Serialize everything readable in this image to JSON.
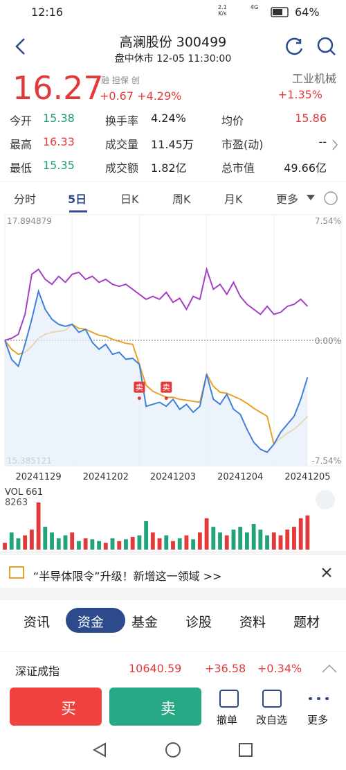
{
  "status": {
    "time": "12:16",
    "speed": "2.1",
    "speed_unit": "K/s",
    "network": "4G",
    "battery": "64%"
  },
  "header": {
    "title": "高澜股份 300499",
    "subtitle": "盘中休市 12-05 11:30:00"
  },
  "quote": {
    "price": "16.27",
    "change": "+0.67",
    "change_pct": "+4.29%",
    "badges": [
      "融",
      "担保",
      "创"
    ],
    "sector": "工业机械",
    "sector_change": "+1.35%"
  },
  "stats": [
    [
      [
        "今开",
        "15.38"
      ],
      [
        "换手率",
        "4.24%"
      ],
      [
        "均价",
        "15.86"
      ]
    ],
    [
      [
        "最高",
        "16.33"
      ],
      [
        "成交量",
        "11.45万"
      ],
      [
        "市盈(动)",
        "--"
      ]
    ],
    [
      [
        "最低",
        "15.35"
      ],
      [
        "成交额",
        "1.82亿"
      ],
      [
        "总市值",
        "49.66亿"
      ]
    ]
  ],
  "tabs": {
    "items": [
      "分时",
      "5日",
      "日K",
      "周K",
      "月K",
      "更多"
    ],
    "active": 1
  },
  "chart_data": [
    {
      "type": "line",
      "xlim": [
        0,
        50
      ],
      "x": [
        0,
        1,
        2,
        3,
        4,
        5,
        6,
        7,
        8,
        9,
        10,
        11,
        12,
        13,
        14,
        15,
        16,
        17,
        18,
        19,
        20,
        21,
        22,
        23,
        24,
        25,
        26,
        27,
        28,
        29,
        30,
        31,
        32,
        33,
        34,
        35,
        36,
        37,
        38,
        39,
        40,
        41,
        42,
        43,
        44,
        45
      ],
      "xticks": [
        {
          "value": 5,
          "label": "20241129"
        },
        {
          "value": 15,
          "label": "20241202"
        },
        {
          "value": 25,
          "label": "20241203"
        },
        {
          "value": 35,
          "label": "20241204"
        },
        {
          "value": 45,
          "label": "20241205"
        }
      ],
      "xgrid": [
        10,
        20,
        30,
        40
      ],
      "ylim": [
        15.385121,
        17.894879
      ],
      "yticks": [
        17.894879,
        15.385121
      ],
      "y2lim": [
        -7.54,
        7.54
      ],
      "y2ticks": [
        {
          "value": 7.54,
          "label": "7.54%"
        },
        {
          "value": 0,
          "label": "0.00%"
        },
        {
          "value": -7.54,
          "label": "-7.54%"
        }
      ],
      "series": [
        {
          "color": "#a43fc6",
          "values": [
            16.64,
            16.66,
            16.7,
            16.9,
            17.3,
            17.35,
            17.25,
            17.2,
            17.28,
            17.22,
            17.3,
            17.32,
            17.25,
            17.28,
            17.22,
            17.25,
            17.2,
            17.18,
            17.2,
            17.15,
            17.1,
            17.05,
            17.08,
            17.05,
            17.12,
            17.02,
            17.06,
            16.95,
            17.08,
            17.05,
            17.35,
            17.15,
            17.2,
            17.1,
            17.22,
            17.08,
            17.0,
            16.95,
            16.9,
            16.98,
            16.9,
            16.92,
            16.98,
            17.0,
            17.05,
            16.98
          ]
        },
        {
          "color": "#e8a128",
          "values": [
            16.64,
            16.55,
            16.5,
            16.52,
            16.58,
            16.66,
            16.7,
            16.72,
            16.73,
            16.74,
            16.8,
            16.76,
            16.75,
            16.72,
            16.69,
            16.68,
            16.65,
            16.63,
            16.61,
            16.6,
            16.4,
            16.19,
            16.13,
            16.1,
            16.07,
            16.07,
            16.05,
            16.04,
            16.03,
            16.02,
            16.3,
            16.18,
            16.12,
            16.11,
            16.08,
            16.05,
            16.01,
            15.96,
            15.92,
            15.88,
            15.6,
            15.66,
            15.71,
            15.75,
            15.81,
            15.88
          ]
        },
        {
          "color": "#3f7fdc",
          "values": [
            16.64,
            16.45,
            16.38,
            16.6,
            16.85,
            17.13,
            16.95,
            16.85,
            16.8,
            16.78,
            16.8,
            16.72,
            16.75,
            16.62,
            16.55,
            16.6,
            16.5,
            16.52,
            16.45,
            16.46,
            16.4,
            15.98,
            16.0,
            16.02,
            15.98,
            16.05,
            15.95,
            16.0,
            15.92,
            15.98,
            16.3,
            16.05,
            16.0,
            16.1,
            15.95,
            15.9,
            15.75,
            15.62,
            15.55,
            15.52,
            15.6,
            15.72,
            15.8,
            15.88,
            16.05,
            16.27
          ]
        }
      ],
      "annotations": [
        {
          "text": "卖",
          "x": 20,
          "y": 16.06
        },
        {
          "text": "卖",
          "x": 24,
          "y": 16.06
        }
      ]
    },
    {
      "type": "bar",
      "title": "VOL 661",
      "xlim": [
        0,
        50
      ],
      "ylim": [
        0,
        8263
      ],
      "yticks": [
        8263
      ],
      "up_color": "#e03a3a",
      "down_color": "#22a37a",
      "x": [
        0,
        1,
        2,
        3,
        4,
        5,
        6,
        7,
        8,
        9,
        10,
        11,
        12,
        13,
        14,
        15,
        16,
        17,
        18,
        19,
        20,
        21,
        22,
        23,
        24,
        25,
        26,
        27,
        28,
        29,
        30,
        31,
        32,
        33,
        34,
        35,
        36,
        37,
        38,
        39,
        40,
        41,
        42,
        43,
        44,
        45
      ],
      "values": [
        1200,
        3000,
        2000,
        2500,
        3500,
        8263,
        4000,
        3000,
        2000,
        2500,
        3000,
        1500,
        2000,
        1800,
        1500,
        1200,
        2000,
        1500,
        1800,
        2200,
        2500,
        5000,
        3000,
        2000,
        2500,
        1500,
        2000,
        2500,
        1800,
        3000,
        5500,
        4000,
        3000,
        2500,
        3500,
        4000,
        3000,
        4500,
        3500,
        2500,
        3000,
        2500,
        3500,
        4000,
        5500,
        6000
      ]
    }
  ],
  "banner": "“半导体限令”升级！新增这一领域 >>",
  "bottom_tabs": {
    "items": [
      "资讯",
      "资金",
      "基金",
      "诊股",
      "资料",
      "题材"
    ],
    "active": 1
  },
  "index_bar": {
    "name": "深证成指",
    "value": "10640.59",
    "change": "+36.58",
    "pct": "+0.34%"
  },
  "buttons": {
    "buy": "买",
    "sell": "卖",
    "actions": [
      "撤单",
      "改自选",
      "更多"
    ]
  }
}
